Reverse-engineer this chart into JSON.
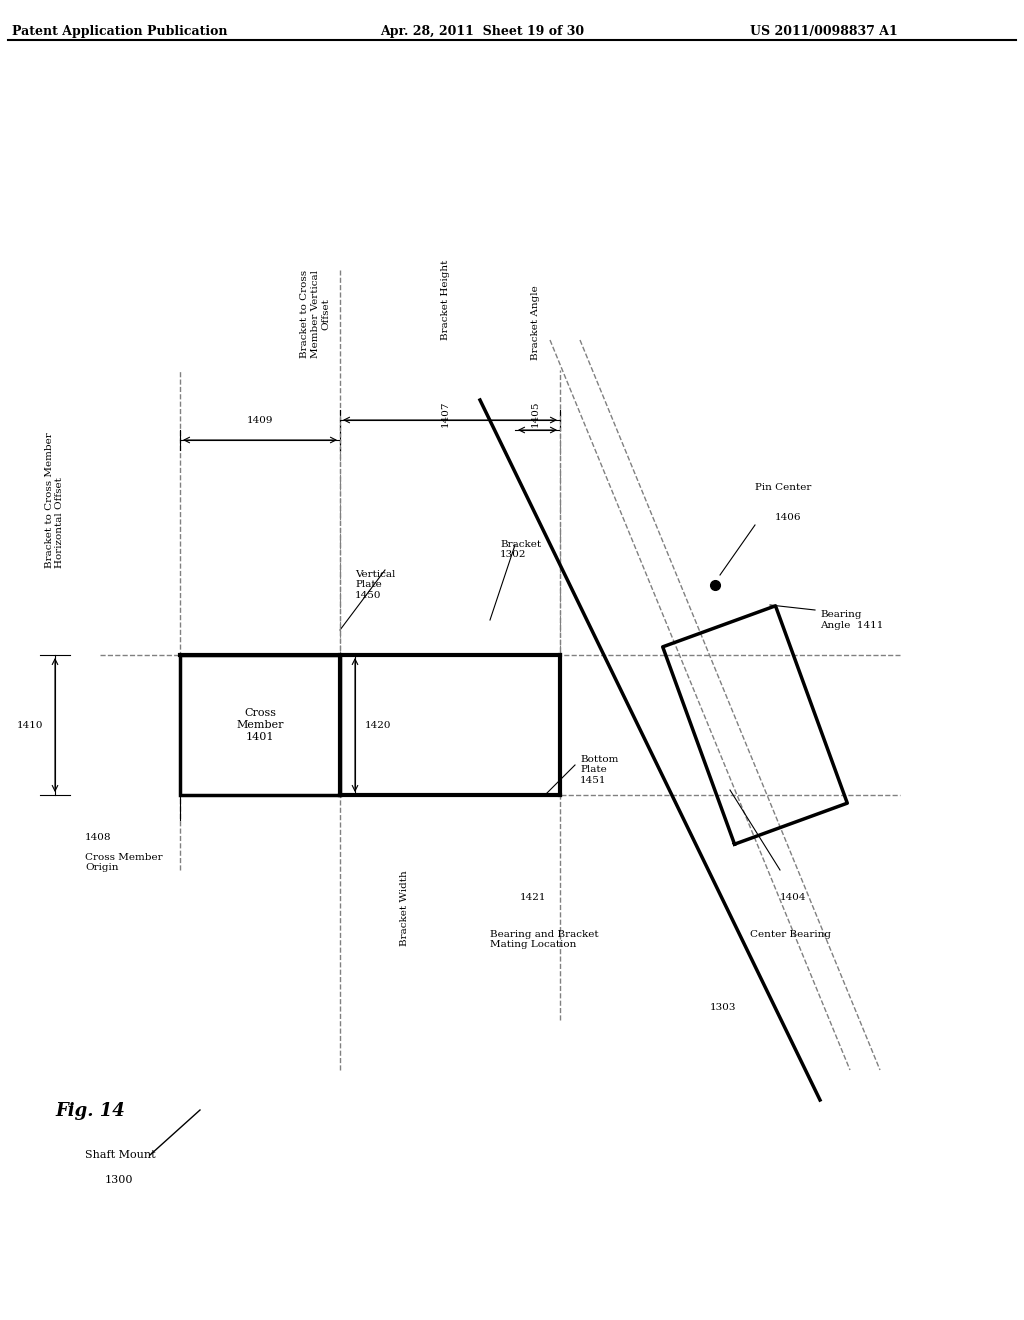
{
  "title": "Patent Application Publication",
  "title_right1": "Apr. 28, 2011  Sheet 19 of 30",
  "title_right2": "US 2011/0098837 A1",
  "fig_label": "Fig. 14",
  "background_color": "#ffffff",
  "line_color": "#000000",
  "labels": {
    "cross_member": "Cross\nMember\n1401",
    "vertical_plate": "Vertical\nPlate\n1450",
    "bracket": "Bracket\n1302",
    "bottom_plate": "Bottom\nPlate\n1451",
    "shaft_mount": "Shaft Mount\n1300",
    "center_bearing": "Center Bearing",
    "pin_center": "Pin Center\n1406",
    "bracket_to_cross_h": "Bracket to Cross Member\nHorizontal Offset",
    "bracket_to_cross_v": "Bracket to Cross\nMember Vertical\nOffset",
    "bracket_height": "Bracket Height\n1407",
    "bracket_angle": "Bracket Angle\n1405",
    "bracket_width": "Bracket Width",
    "cross_member_origin": "Cross Member\nOrigin",
    "bearing_bracket_mating": "Bearing and Bracket\nMating Location",
    "bearing_angle": "Bearing\nAngle  1411",
    "num_1408": "1408",
    "num_1409": "1409",
    "num_1410": "1410",
    "num_1420": "1420",
    "num_1421": "1421",
    "num_1404": "1404",
    "num_1303": "1303"
  }
}
